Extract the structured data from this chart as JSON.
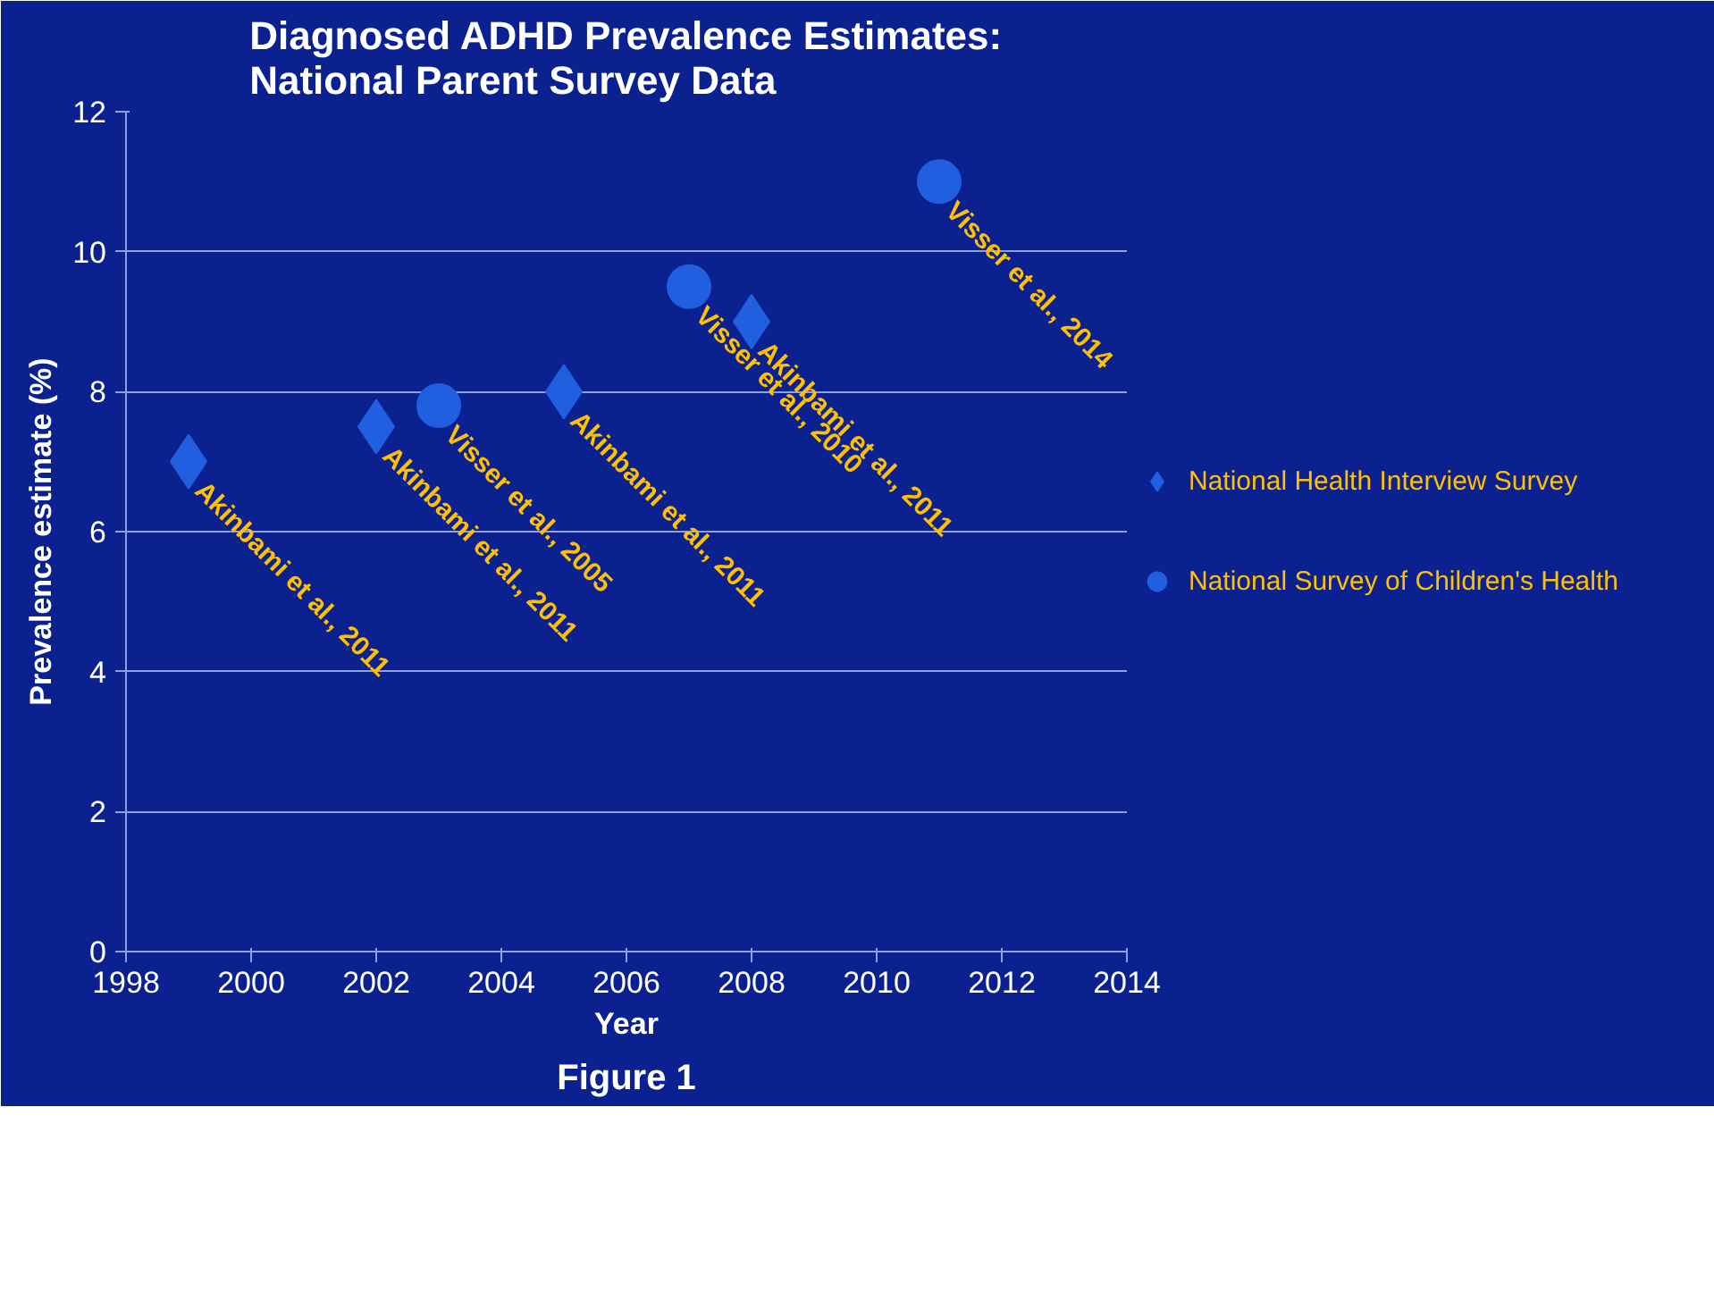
{
  "chart_data": {
    "type": "scatter",
    "title": "Diagnosed ADHD Prevalence Estimates:\nNational Parent Survey Data",
    "xlabel": "Year",
    "ylabel": "Prevalence estimate (%)",
    "xlim": [
      1998,
      2014
    ],
    "xticks": [
      1998,
      2000,
      2002,
      2004,
      2006,
      2008,
      2010,
      2012,
      2014
    ],
    "ylim": [
      0,
      12
    ],
    "yticks": [
      0,
      2,
      4,
      6,
      8,
      10,
      12
    ],
    "grid": "y",
    "legend": "right",
    "series": [
      {
        "name": "National Health Interview Survey",
        "color": "#1f5fe0",
        "marker": "diamond",
        "x": [
          1999,
          2002,
          2005,
          2008
        ],
        "values": [
          7,
          7.5,
          8,
          9
        ]
      },
      {
        "name": "National Survey of Children's Health",
        "color": "#1f5fe0",
        "marker": "circle",
        "x": [
          2003,
          2007,
          2011
        ],
        "values": [
          7.8,
          9.5,
          11
        ]
      }
    ],
    "annotations": [
      {
        "text": "Akinbami et al., 2011",
        "x": 1999,
        "y": 7
      },
      {
        "text": "Akinbami et al., 2011",
        "x": 2002,
        "y": 7.5
      },
      {
        "text": "Visser et al., 2005",
        "x": 2003,
        "y": 7.8
      },
      {
        "text": "Akinbami et al., 2011",
        "x": 2005,
        "y": 8
      },
      {
        "text": "Visser et al., 2010",
        "x": 2007,
        "y": 9.5
      },
      {
        "text": "Akinbami et al., 2011",
        "x": 2008,
        "y": 9
      },
      {
        "text": "Visser et al., 2014",
        "x": 2011,
        "y": 11
      },
      "Figure 1"
    ]
  }
}
